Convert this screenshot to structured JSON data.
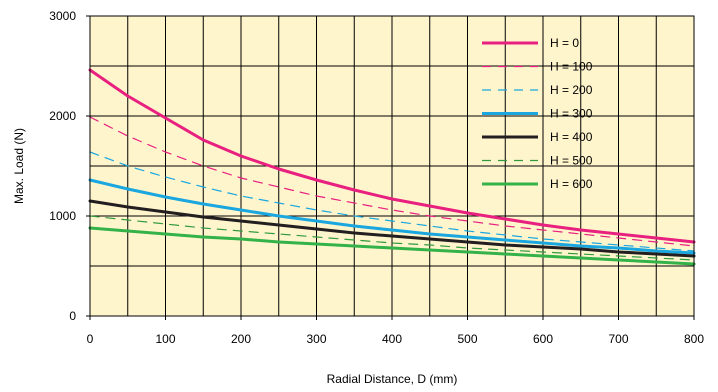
{
  "chart_data": {
    "type": "line",
    "xlabel": "Radial Distance, D (mm)",
    "ylabel": "Max. Load (N)",
    "xlim": [
      0,
      800
    ],
    "ylim": [
      0,
      3000
    ],
    "x_ticks": [
      "0",
      "100",
      "200",
      "300",
      "400",
      "500",
      "600",
      "700",
      "800"
    ],
    "y_ticks": [
      "0",
      "1000",
      "2000",
      "3000"
    ],
    "grid": true,
    "plot_background": "#fff5cc",
    "legend_position": "top-right",
    "x": [
      0,
      50,
      100,
      150,
      200,
      250,
      300,
      350,
      400,
      450,
      500,
      550,
      600,
      650,
      700,
      750,
      800
    ],
    "series": [
      {
        "name": "H = 0",
        "color": "#e8207f",
        "dash": "solid",
        "values": [
          2460,
          2200,
          1980,
          1760,
          1600,
          1470,
          1360,
          1260,
          1170,
          1100,
          1030,
          970,
          910,
          860,
          820,
          780,
          740
        ]
      },
      {
        "name": "H = 100",
        "color": "#e8207f",
        "dash": "dashed",
        "values": [
          1990,
          1800,
          1640,
          1500,
          1380,
          1290,
          1200,
          1130,
          1060,
          1000,
          950,
          900,
          860,
          820,
          780,
          740,
          700
        ]
      },
      {
        "name": "H = 200",
        "color": "#1aa7e0",
        "dash": "dashed",
        "values": [
          1640,
          1500,
          1390,
          1290,
          1200,
          1130,
          1060,
          1000,
          950,
          900,
          850,
          810,
          770,
          740,
          710,
          680,
          650
        ]
      },
      {
        "name": "H = 300",
        "color": "#1aa7e0",
        "dash": "solid",
        "values": [
          1360,
          1270,
          1190,
          1120,
          1060,
          1000,
          950,
          900,
          860,
          820,
          790,
          760,
          730,
          700,
          680,
          650,
          630
        ]
      },
      {
        "name": "H = 400",
        "color": "#231f20",
        "dash": "solid",
        "values": [
          1150,
          1090,
          1040,
          990,
          950,
          910,
          870,
          830,
          800,
          770,
          740,
          710,
          690,
          670,
          640,
          620,
          600
        ]
      },
      {
        "name": "H = 500",
        "color": "#2f9a3e",
        "dash": "dashed",
        "values": [
          1000,
          960,
          920,
          880,
          850,
          820,
          790,
          760,
          730,
          710,
          680,
          660,
          640,
          620,
          600,
          580,
          560
        ]
      },
      {
        "name": "H = 600",
        "color": "#34b24a",
        "dash": "solid",
        "values": [
          880,
          850,
          820,
          790,
          770,
          740,
          720,
          700,
          680,
          660,
          640,
          620,
          600,
          580,
          560,
          540,
          520
        ]
      }
    ]
  }
}
